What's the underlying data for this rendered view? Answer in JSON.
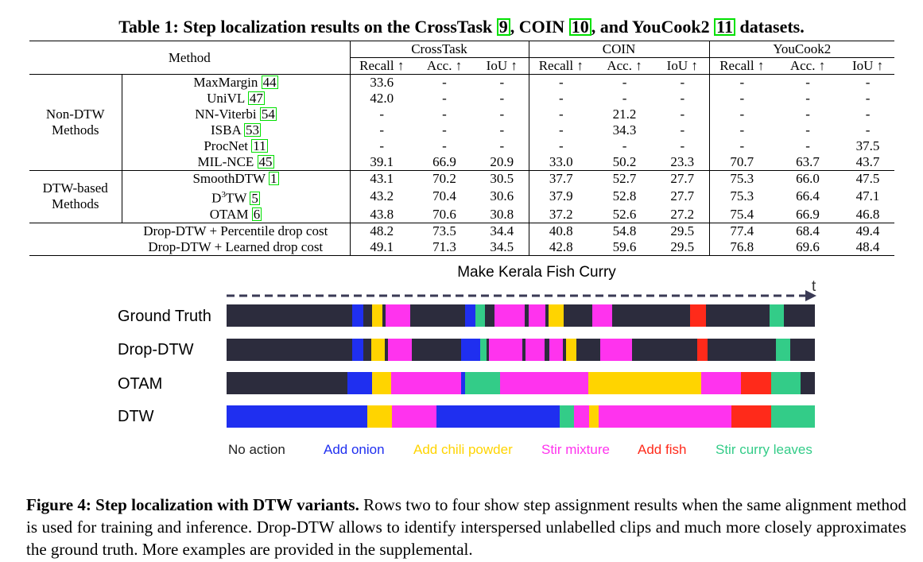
{
  "table": {
    "caption_prefix": "Table 1: Step localization results on the CrossTask ",
    "cite_crosstask": "9",
    "caption_mid1": ", COIN ",
    "cite_coin": "10",
    "caption_mid2": ", and YouCook2 ",
    "cite_youcook": "11",
    "caption_suffix": " datasets.",
    "header": {
      "method": "Method",
      "datasets": [
        "CrossTask",
        "COIN",
        "YouCook2"
      ],
      "metrics": [
        "Recall ↑",
        "Acc. ↑",
        "IoU ↑"
      ]
    },
    "groups": [
      {
        "label_line1": "Non-DTW",
        "label_line2": "Methods",
        "rows": [
          {
            "name": "MaxMargin ",
            "cite": "44",
            "values": [
              "33.6",
              "-",
              "-",
              "-",
              "-",
              "-",
              "-",
              "-",
              "-"
            ]
          },
          {
            "name": "UniVL ",
            "cite": "47",
            "values": [
              "42.0",
              "-",
              "-",
              "-",
              "-",
              "-",
              "-",
              "-",
              "-"
            ]
          },
          {
            "name": "NN-Viterbi ",
            "cite": "54",
            "values": [
              "-",
              "-",
              "-",
              "-",
              "21.2",
              "-",
              "-",
              "-",
              "-"
            ]
          },
          {
            "name": "ISBA ",
            "cite": "53",
            "values": [
              "-",
              "-",
              "-",
              "-",
              "34.3",
              "-",
              "-",
              "-",
              "-"
            ]
          },
          {
            "name": "ProcNet ",
            "cite": "11",
            "values": [
              "-",
              "-",
              "-",
              "-",
              "-",
              "-",
              "-",
              "-",
              "37.5"
            ]
          },
          {
            "name": "MIL-NCE ",
            "cite": "45",
            "values": [
              "39.1",
              "66.9",
              "20.9",
              "33.0",
              "50.2",
              "23.3",
              "70.7",
              "63.7",
              "43.7"
            ]
          }
        ]
      },
      {
        "label_line1": "DTW-based",
        "label_line2": "Methods",
        "rows": [
          {
            "name": "SmoothDTW ",
            "cite": "1",
            "values": [
              "43.1",
              "70.2",
              "30.5",
              "37.7",
              "52.7",
              "27.7",
              "75.3",
              "66.0",
              "47.5"
            ]
          },
          {
            "name": "D",
            "sup": "3",
            "name_after": "TW ",
            "cite": "5",
            "values": [
              "43.2",
              "70.4",
              "30.6",
              "37.9",
              "52.8",
              "27.7",
              "75.3",
              "66.4",
              "47.1"
            ]
          },
          {
            "name": "OTAM  ",
            "cite": "6",
            "values": [
              "43.8",
              "70.6",
              "30.8",
              "37.2",
              "52.6",
              "27.2",
              "75.4",
              "66.9",
              "46.8"
            ]
          }
        ]
      }
    ],
    "ours": [
      {
        "name": "Drop-DTW + Percentile drop cost",
        "values": [
          "48.2",
          "73.5",
          "34.4",
          "40.8",
          "54.8",
          "29.5",
          "77.4",
          "68.4",
          "49.4"
        ],
        "bold": [
          false,
          true,
          false,
          false,
          false,
          true,
          true,
          false,
          true
        ]
      },
      {
        "name": "Drop-DTW + Learned drop cost",
        "values": [
          "49.1",
          "71.3",
          "34.5",
          "42.8",
          "59.6",
          "29.5",
          "76.8",
          "69.6",
          "48.4"
        ],
        "bold": [
          true,
          false,
          true,
          true,
          true,
          true,
          false,
          true,
          false
        ]
      }
    ]
  },
  "figure": {
    "title": "Make Kerala Fish Curry",
    "time_label": "t",
    "colors": {
      "no_action": "#2c2c3d",
      "onion": "#1f2ff0",
      "chili": "#ffd400",
      "stir": "#ff33ee",
      "fish": "#ff2a1a",
      "leaves": "#33cc88"
    },
    "rows": [
      {
        "label": "Ground Truth",
        "segments": [
          [
            "no_action",
            158
          ],
          [
            "onion",
            14
          ],
          [
            "no_action",
            11
          ],
          [
            "chili",
            13
          ],
          [
            "no_action",
            4
          ],
          [
            "stir",
            31
          ],
          [
            "no_action",
            69
          ],
          [
            "onion",
            13
          ],
          [
            "leaves",
            12
          ],
          [
            "no_action",
            12
          ],
          [
            "stir",
            38
          ],
          [
            "no_action",
            5
          ],
          [
            "stir",
            21
          ],
          [
            "no_action",
            4
          ],
          [
            "chili",
            19
          ],
          [
            "no_action",
            36
          ],
          [
            "stir",
            25
          ],
          [
            "no_action",
            98
          ],
          [
            "fish",
            20
          ],
          [
            "no_action",
            80
          ],
          [
            "leaves",
            18
          ],
          [
            "no_action",
            39
          ]
        ]
      },
      {
        "label": "Drop-DTW",
        "segments": [
          [
            "no_action",
            158
          ],
          [
            "onion",
            14
          ],
          [
            "no_action",
            10
          ],
          [
            "chili",
            17
          ],
          [
            "no_action",
            4
          ],
          [
            "stir",
            30
          ],
          [
            "no_action",
            62
          ],
          [
            "onion",
            24
          ],
          [
            "leaves",
            8
          ],
          [
            "no_action",
            3
          ],
          [
            "stir",
            42
          ],
          [
            "no_action",
            4
          ],
          [
            "stir",
            24
          ],
          [
            "no_action",
            6
          ],
          [
            "stir",
            17
          ],
          [
            "no_action",
            4
          ],
          [
            "chili",
            13
          ],
          [
            "no_action",
            30
          ],
          [
            "stir",
            40
          ],
          [
            "no_action",
            82
          ],
          [
            "fish",
            13
          ],
          [
            "no_action",
            86
          ],
          [
            "leaves",
            18
          ],
          [
            "no_action",
            31
          ]
        ]
      },
      {
        "label": "OTAM",
        "segments": [
          [
            "no_action",
            152
          ],
          [
            "onion",
            31
          ],
          [
            "chili",
            24
          ],
          [
            "stir",
            88
          ],
          [
            "onion",
            5
          ],
          [
            "leaves",
            44
          ],
          [
            "stir",
            111
          ],
          [
            "chili",
            142
          ],
          [
            "stir",
            50
          ],
          [
            "fish",
            38
          ],
          [
            "leaves",
            37
          ],
          [
            "no_action",
            18
          ]
        ]
      },
      {
        "label": "DTW",
        "segments": [
          [
            "onion",
            177
          ],
          [
            "chili",
            31
          ],
          [
            "stir",
            56
          ],
          [
            "onion",
            155
          ],
          [
            "leaves",
            18
          ],
          [
            "stir",
            19
          ],
          [
            "chili",
            12
          ],
          [
            "stir",
            167
          ],
          [
            "fish",
            50
          ],
          [
            "leaves",
            55
          ]
        ]
      }
    ],
    "legend": [
      {
        "label": "No action",
        "color": "#222222"
      },
      {
        "label": "Add onion",
        "color": "#1f2ff0"
      },
      {
        "label": "Add chili powder",
        "color": "#ffd400"
      },
      {
        "label": "Stir mixture",
        "color": "#ff33ee"
      },
      {
        "label": "Add fish",
        "color": "#ff2a1a"
      },
      {
        "label": "Stir curry leaves",
        "color": "#33cc88"
      }
    ]
  },
  "caption": {
    "head": "Figure 4: Step localization with DTW variants.",
    "body": " Rows two to four show step assignment results when the same alignment method is used for training and inference. Drop-DTW allows to identify interspersed unlabelled clips and much more closely approximates the ground truth. More examples are provided in the supplemental."
  }
}
